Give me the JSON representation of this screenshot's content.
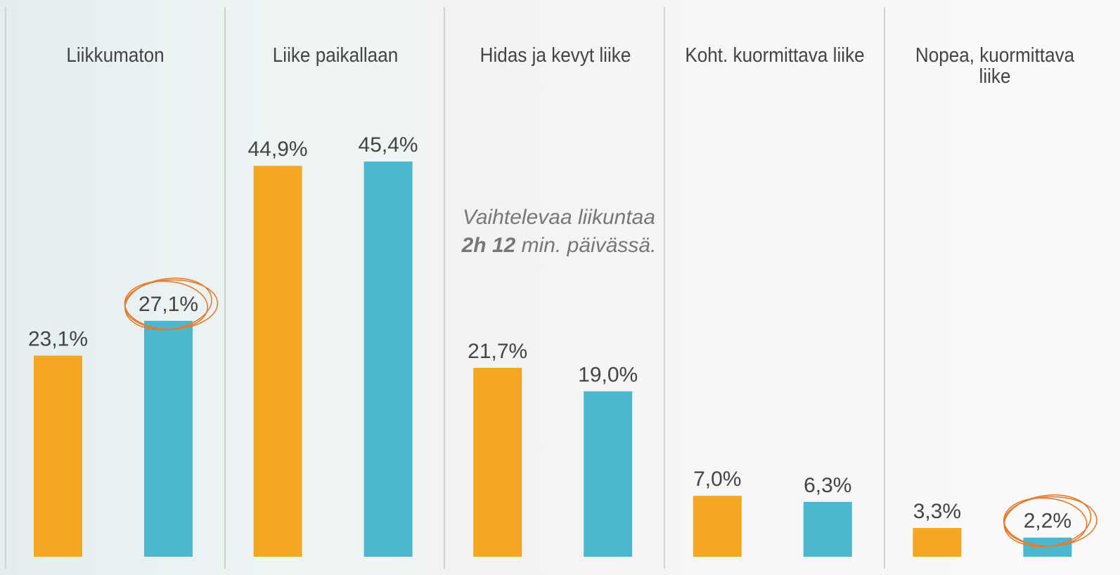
{
  "chart_data": {
    "type": "bar",
    "categories": [
      "Liikkumaton",
      "Liike paikallaan",
      "Hidas ja kevyt liike",
      "Koht. kuormittava liike",
      "Nopea, kuormittava liike"
    ],
    "series": [
      {
        "color": "#f5a623",
        "values": [
          23.1,
          44.9,
          21.7,
          7.0,
          3.3
        ],
        "value_labels": [
          "23,1%",
          "44,9%",
          "21,7%",
          "7,0%",
          "3,3%"
        ]
      },
      {
        "color": "#4bb8d0",
        "values": [
          27.1,
          45.4,
          19.0,
          6.3,
          2.2
        ],
        "value_labels": [
          "27,1%",
          "45,4%",
          "19,0%",
          "6,3%",
          "2,2%"
        ]
      }
    ],
    "annotation": {
      "before": "Vaihtelevaa liikuntaa",
      "bold": "2h 12",
      "after": "min. päivässä."
    }
  }
}
